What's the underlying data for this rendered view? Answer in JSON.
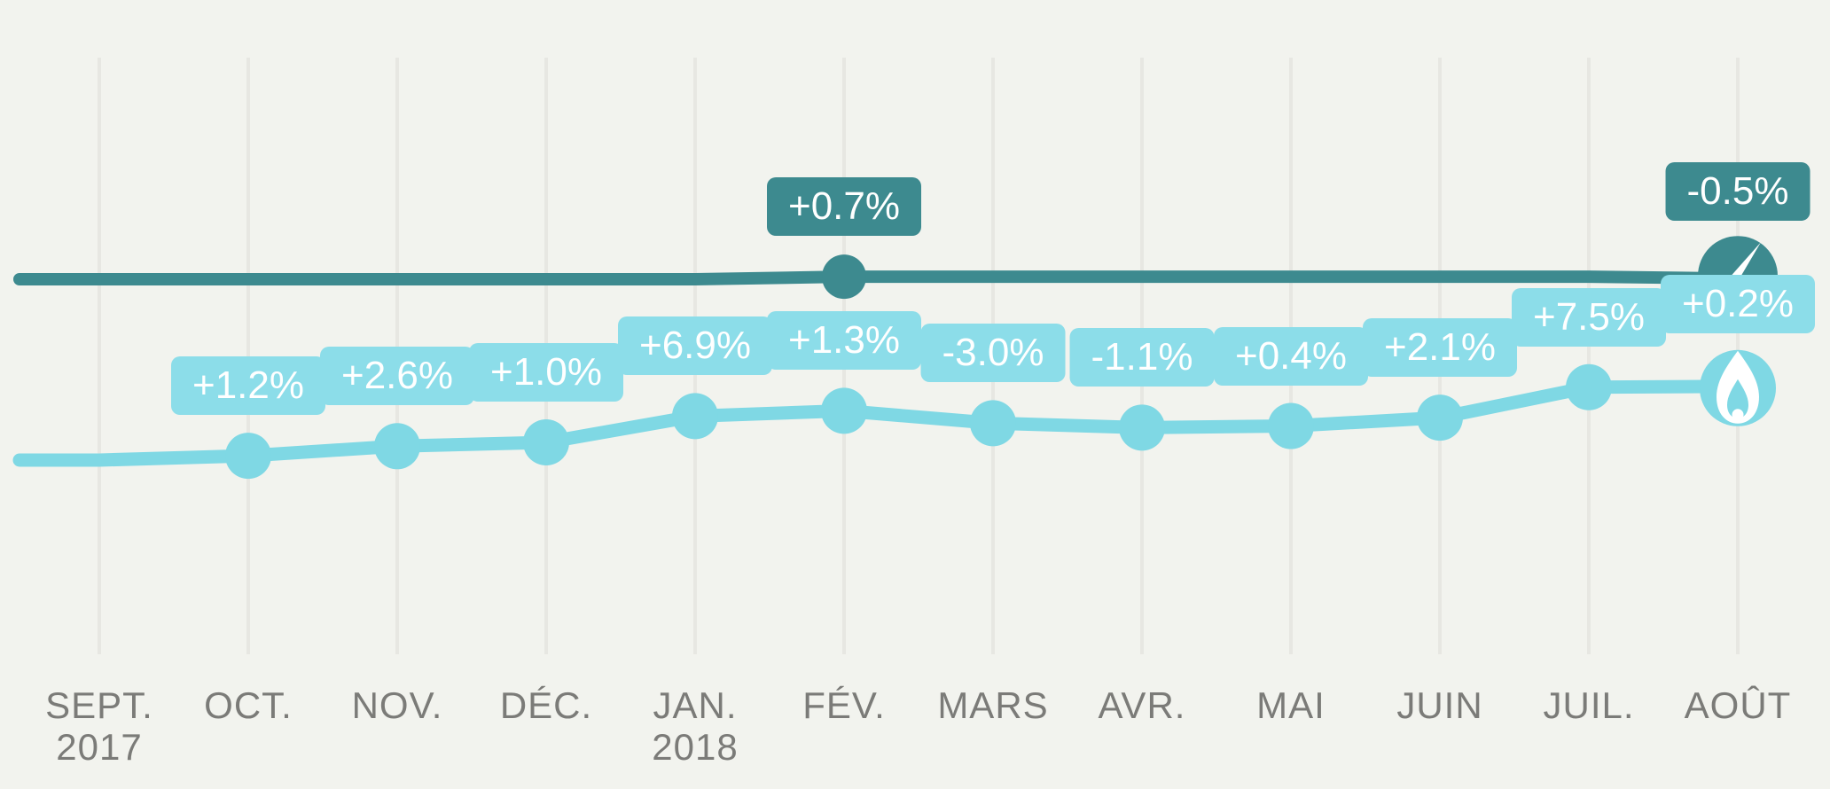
{
  "colors": {
    "background": "#f2f3ee",
    "gridline": "#e7e7e2",
    "axis_label": "#7b7b78",
    "badge_text": "#ffffff",
    "electricity": "#3d8a8f",
    "gas_line": "#7fd8e4",
    "gas_badge": "#8cdde9",
    "icon_glyph": "#ffffff"
  },
  "chart_data": {
    "type": "line",
    "title": "",
    "xlabel": "",
    "ylabel": "",
    "grid": "vertical-only",
    "legend_position": "none",
    "x_categories": [
      "SEPT. 2017",
      "OCT.",
      "NOV.",
      "DÉC.",
      "JAN. 2018",
      "FÉV.",
      "MARS",
      "AVR.",
      "MAI",
      "JUIN",
      "JUIL.",
      "AOÛT"
    ],
    "x_axis": [
      {
        "label": "SEPT.",
        "sublabel": "2017"
      },
      {
        "label": "OCT.",
        "sublabel": ""
      },
      {
        "label": "NOV.",
        "sublabel": ""
      },
      {
        "label": "DÉC.",
        "sublabel": ""
      },
      {
        "label": "JAN.",
        "sublabel": "2018"
      },
      {
        "label": "FÉV.",
        "sublabel": ""
      },
      {
        "label": "MARS",
        "sublabel": ""
      },
      {
        "label": "AVR.",
        "sublabel": ""
      },
      {
        "label": "MAI",
        "sublabel": ""
      },
      {
        "label": "JUIN",
        "sublabel": ""
      },
      {
        "label": "JUIL.",
        "sublabel": ""
      },
      {
        "label": "AOÛT",
        "sublabel": ""
      }
    ],
    "series": [
      {
        "id": "electricity",
        "icon": "gauge-icon",
        "monthly_change_pct": [
          0,
          null,
          null,
          null,
          null,
          0.7,
          null,
          null,
          null,
          null,
          null,
          -0.5
        ],
        "badge_labels": [
          null,
          null,
          null,
          null,
          null,
          "+0.7%",
          null,
          null,
          null,
          null,
          null,
          "-0.5%"
        ]
      },
      {
        "id": "gas",
        "icon": "flame-icon",
        "monthly_change_pct": [
          0,
          1.2,
          2.6,
          1.0,
          6.9,
          1.3,
          -3.0,
          -1.1,
          0.4,
          2.1,
          7.5,
          0.2
        ],
        "badge_labels": [
          null,
          "+1.2%",
          "+2.6%",
          "+1.0%",
          "+6.9%",
          "+1.3%",
          "-3.0%",
          "-1.1%",
          "+0.4%",
          "+2.1%",
          "+7.5%",
          "+0.2%"
        ]
      }
    ]
  }
}
